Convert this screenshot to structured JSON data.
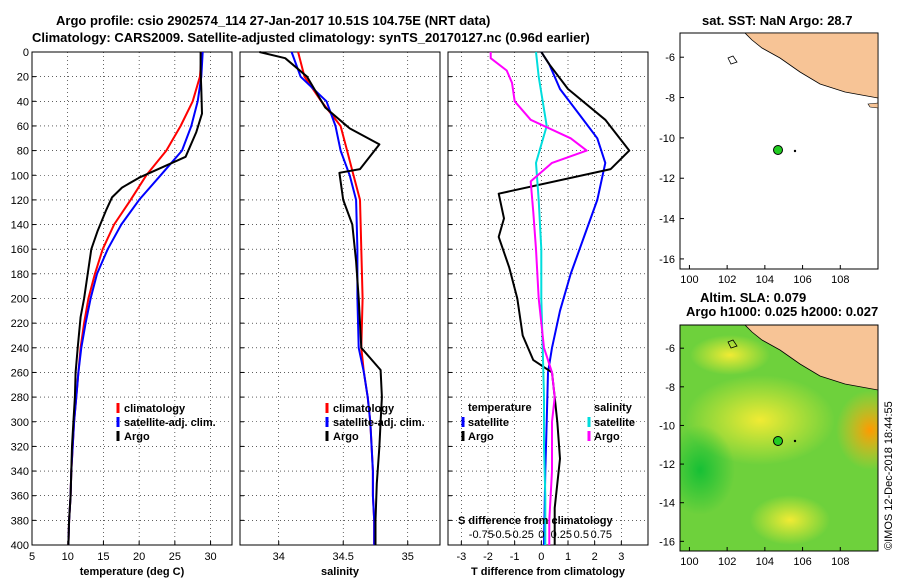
{
  "header": {
    "title1": "Argo profile: csio 2902574_114 27-Jan-2017 10.51S 104.75E (NRT data)",
    "title2": "Climatology: CARS2009. Satellite-adjusted climatology: synTS_20170127.nc (0.96d earlier)"
  },
  "colors": {
    "climatology": "#ff0000",
    "satellite": "#0000ff",
    "argo": "#000000",
    "s_satellite": "#00dddd",
    "s_argo": "#ff00ff",
    "land": "#f7c496"
  },
  "chart_data": [
    {
      "type": "line",
      "name": "temperature",
      "xlabel": "temperature (deg C)",
      "ylabel": "",
      "xlim": [
        5,
        33
      ],
      "ylim": [
        400,
        0
      ],
      "xticks": [
        "5",
        "10",
        "15",
        "20",
        "25",
        "30"
      ],
      "xtick_values": [
        5,
        10,
        15,
        20,
        25,
        30
      ],
      "yticks": [
        "0",
        "20",
        "40",
        "60",
        "80",
        "100",
        "120",
        "140",
        "160",
        "180",
        "200",
        "220",
        "240",
        "260",
        "280",
        "300",
        "320",
        "340",
        "360",
        "380",
        "400"
      ],
      "grid": true,
      "legend": [
        "climatology",
        "satellite-adj. clim.",
        "Argo"
      ],
      "series": [
        {
          "name": "climatology",
          "color": "#ff0000",
          "points": [
            [
              28.8,
              0
            ],
            [
              28.5,
              20
            ],
            [
              27.5,
              40
            ],
            [
              25.8,
              60
            ],
            [
              23.8,
              80
            ],
            [
              21,
              100
            ],
            [
              18.8,
              120
            ],
            [
              16.5,
              140
            ],
            [
              14.9,
              160
            ],
            [
              13.8,
              180
            ],
            [
              12.9,
              200
            ],
            [
              12.3,
              220
            ],
            [
              11.8,
              240
            ],
            [
              11.5,
              260
            ],
            [
              11.2,
              280
            ],
            [
              10.9,
              300
            ],
            [
              10.7,
              320
            ],
            [
              10.5,
              340
            ],
            [
              10.4,
              360
            ],
            [
              10.2,
              380
            ],
            [
              10.1,
              400
            ]
          ]
        },
        {
          "name": "satellite-adj. clim.",
          "color": "#0000ff",
          "points": [
            [
              28.9,
              0
            ],
            [
              28.7,
              20
            ],
            [
              28.2,
              40
            ],
            [
              27.3,
              60
            ],
            [
              26,
              80
            ],
            [
              23,
              100
            ],
            [
              20,
              120
            ],
            [
              17.5,
              140
            ],
            [
              15.6,
              160
            ],
            [
              14.1,
              180
            ],
            [
              13.2,
              200
            ],
            [
              12.5,
              220
            ],
            [
              11.9,
              240
            ],
            [
              11.5,
              260
            ],
            [
              11.2,
              280
            ],
            [
              10.9,
              300
            ],
            [
              10.7,
              320
            ],
            [
              10.5,
              340
            ],
            [
              10.4,
              360
            ],
            [
              10.2,
              380
            ],
            [
              10.1,
              400
            ]
          ]
        },
        {
          "name": "Argo",
          "color": "#000000",
          "points": [
            [
              28.6,
              0
            ],
            [
              28.6,
              15
            ],
            [
              28.7,
              30
            ],
            [
              28.8,
              50
            ],
            [
              28,
              65
            ],
            [
              26.5,
              85
            ],
            [
              20,
              102
            ],
            [
              17.6,
              110
            ],
            [
              16.2,
              118
            ],
            [
              15.4,
              128
            ],
            [
              14.2,
              145
            ],
            [
              13.3,
              160
            ],
            [
              12.8,
              180
            ],
            [
              12.3,
              200
            ],
            [
              11.8,
              215
            ],
            [
              11.4,
              240
            ],
            [
              11.1,
              260
            ],
            [
              11,
              280
            ],
            [
              10.8,
              300
            ],
            [
              10.6,
              320
            ],
            [
              10.5,
              340
            ],
            [
              10.4,
              360
            ],
            [
              10.2,
              380
            ],
            [
              10.1,
              400
            ]
          ]
        }
      ]
    },
    {
      "type": "line",
      "name": "salinity",
      "xlabel": "salinity",
      "xlim": [
        33.7,
        35.25
      ],
      "ylim": [
        400,
        0
      ],
      "xticks": [
        "34",
        "34.5",
        "35"
      ],
      "xtick_values": [
        34,
        34.5,
        35
      ],
      "grid": true,
      "legend": [
        "climatology",
        "satellite-adj. clim.",
        "Argo"
      ],
      "series": [
        {
          "name": "climatology",
          "color": "#ff0000",
          "points": [
            [
              34.15,
              0
            ],
            [
              34.2,
              20
            ],
            [
              34.33,
              40
            ],
            [
              34.48,
              60
            ],
            [
              34.53,
              80
            ],
            [
              34.58,
              100
            ],
            [
              34.63,
              120
            ],
            [
              34.64,
              160
            ],
            [
              34.65,
              200
            ],
            [
              34.64,
              240
            ],
            [
              34.66,
              260
            ],
            [
              34.69,
              280
            ],
            [
              34.71,
              300
            ],
            [
              34.72,
              320
            ],
            [
              34.73,
              340
            ],
            [
              34.73,
              360
            ],
            [
              34.74,
              380
            ],
            [
              34.74,
              400
            ]
          ]
        },
        {
          "name": "satellite-adj. clim.",
          "color": "#0000ff",
          "points": [
            [
              34.1,
              0
            ],
            [
              34.17,
              20
            ],
            [
              34.37,
              40
            ],
            [
              34.44,
              60
            ],
            [
              34.48,
              80
            ],
            [
              34.55,
              100
            ],
            [
              34.6,
              120
            ],
            [
              34.61,
              160
            ],
            [
              34.61,
              200
            ],
            [
              34.62,
              240
            ],
            [
              34.66,
              260
            ],
            [
              34.69,
              280
            ],
            [
              34.71,
              300
            ],
            [
              34.72,
              320
            ],
            [
              34.73,
              340
            ],
            [
              34.73,
              360
            ],
            [
              34.74,
              380
            ],
            [
              34.74,
              400
            ]
          ]
        },
        {
          "name": "Argo",
          "color": "#000000",
          "points": [
            [
              33.85,
              0
            ],
            [
              34.05,
              5
            ],
            [
              34.22,
              20
            ],
            [
              34.36,
              45
            ],
            [
              34.55,
              62
            ],
            [
              34.78,
              75
            ],
            [
              34.63,
              95
            ],
            [
              34.47,
              98
            ],
            [
              34.5,
              120
            ],
            [
              34.57,
              140
            ],
            [
              34.6,
              170
            ],
            [
              34.62,
              200
            ],
            [
              34.63,
              220
            ],
            [
              34.64,
              240
            ],
            [
              34.79,
              258
            ],
            [
              34.8,
              280
            ],
            [
              34.79,
              300
            ],
            [
              34.78,
              320
            ],
            [
              34.76,
              350
            ],
            [
              34.75,
              380
            ],
            [
              34.75,
              400
            ]
          ]
        }
      ]
    },
    {
      "type": "line",
      "name": "difference",
      "xlabel": "T difference from climatology",
      "xlabel2": "S difference from climatology",
      "xlim": [
        -3.5,
        4
      ],
      "ylim": [
        400,
        0
      ],
      "xticks": [
        "-3",
        "-2",
        "-1",
        "0",
        "1",
        "2",
        "3"
      ],
      "xtick_values": [
        -3,
        -2,
        -1,
        0,
        1,
        2,
        3
      ],
      "sticks": [
        "-0.75",
        "-0.5",
        "-0.25",
        "0",
        "0.25",
        "0.5",
        "0.75"
      ],
      "stick_values": [
        -2.25,
        -1.5,
        -0.75,
        0,
        0.75,
        1.5,
        2.25
      ],
      "grid": true,
      "legend_temperature": {
        "heading": "temperature",
        "items": [
          "satellite",
          "Argo"
        ]
      },
      "legend_salinity": {
        "heading": "salinity",
        "items": [
          "satellite",
          "Argo"
        ]
      },
      "series": [
        {
          "name": "T satellite",
          "color": "#0000ff",
          "points": [
            [
              0,
              0
            ],
            [
              0.3,
              10
            ],
            [
              0.7,
              30
            ],
            [
              1.4,
              50
            ],
            [
              2.1,
              70
            ],
            [
              2.4,
              90
            ],
            [
              2.1,
              120
            ],
            [
              1.6,
              150
            ],
            [
              1.1,
              180
            ],
            [
              0.7,
              210
            ],
            [
              0.4,
              240
            ],
            [
              0.25,
              260
            ],
            [
              0.2,
              300
            ],
            [
              0.15,
              340
            ],
            [
              0.1,
              400
            ]
          ]
        },
        {
          "name": "T Argo",
          "color": "#000000",
          "points": [
            [
              0,
              0
            ],
            [
              0.3,
              10
            ],
            [
              1,
              30
            ],
            [
              2.4,
              55
            ],
            [
              3.3,
              80
            ],
            [
              2.6,
              95
            ],
            [
              -1.6,
              115
            ],
            [
              -1.4,
              135
            ],
            [
              -1.6,
              150
            ],
            [
              -1.2,
              175
            ],
            [
              -0.9,
              200
            ],
            [
              -0.7,
              230
            ],
            [
              -0.3,
              250
            ],
            [
              0.4,
              260
            ],
            [
              0.5,
              280
            ],
            [
              0.6,
              300
            ],
            [
              0.7,
              330
            ],
            [
              0.5,
              370
            ],
            [
              0.5,
              400
            ]
          ]
        },
        {
          "name": "S satellite",
          "color": "#00dddd",
          "points": [
            [
              -0.2,
              0
            ],
            [
              -0.1,
              20
            ],
            [
              0.05,
              40
            ],
            [
              0.2,
              60
            ],
            [
              -0.2,
              90
            ],
            [
              -0.1,
              120
            ],
            [
              0,
              160
            ],
            [
              0,
              200
            ],
            [
              0.05,
              240
            ],
            [
              0.1,
              280
            ],
            [
              0.1,
              320
            ],
            [
              0.15,
              360
            ],
            [
              0.15,
              400
            ]
          ]
        },
        {
          "name": "S Argo",
          "color": "#ff00ff",
          "points": [
            [
              -1.9,
              0
            ],
            [
              -1.9,
              5
            ],
            [
              -1.3,
              15
            ],
            [
              -1.1,
              25
            ],
            [
              -1,
              40
            ],
            [
              -0.4,
              55
            ],
            [
              1.1,
              70
            ],
            [
              1.7,
              80
            ],
            [
              0.4,
              90
            ],
            [
              -0.4,
              105
            ],
            [
              -0.3,
              130
            ],
            [
              -0.2,
              160
            ],
            [
              -0.1,
              200
            ],
            [
              0.1,
              240
            ],
            [
              0.4,
              260
            ],
            [
              0.5,
              280
            ],
            [
              0.4,
              300
            ],
            [
              0.4,
              340
            ],
            [
              0.3,
              380
            ],
            [
              0.3,
              400
            ]
          ]
        }
      ]
    },
    {
      "type": "map",
      "name": "sst-map",
      "title": "sat. SST: NaN Argo: 28.7",
      "xlim": [
        99.5,
        110
      ],
      "ylim": [
        -16.5,
        -4.8
      ],
      "xticks": [
        "100",
        "102",
        "104",
        "106",
        "108"
      ],
      "xtick_values": [
        100,
        102,
        104,
        106,
        108
      ],
      "yticks": [
        "-6",
        "-8",
        "-10",
        "-12",
        "-14",
        "-16"
      ],
      "ytick_values": [
        -6,
        -8,
        -10,
        -12,
        -14,
        -16
      ],
      "marker": {
        "lon": 104.75,
        "lat": -10.51
      }
    },
    {
      "type": "map",
      "name": "sla-map",
      "title": "Altim. SLA: 0.079",
      "subtitle": "Argo h1000: 0.025 h2000: 0.027",
      "xlim": [
        99.5,
        110
      ],
      "ylim": [
        -16.5,
        -4.8
      ],
      "xticks": [
        "100",
        "102",
        "104",
        "106",
        "108"
      ],
      "xtick_values": [
        100,
        102,
        104,
        106,
        108
      ],
      "yticks": [
        "-6",
        "-8",
        "-10",
        "-12",
        "-14",
        "-16"
      ],
      "ytick_values": [
        -6,
        -8,
        -10,
        -12,
        -14,
        -16
      ],
      "marker": {
        "lon": 104.75,
        "lat": -10.51
      }
    }
  ],
  "credit": "©IMOS 12-Dec-2018 18:44:55"
}
